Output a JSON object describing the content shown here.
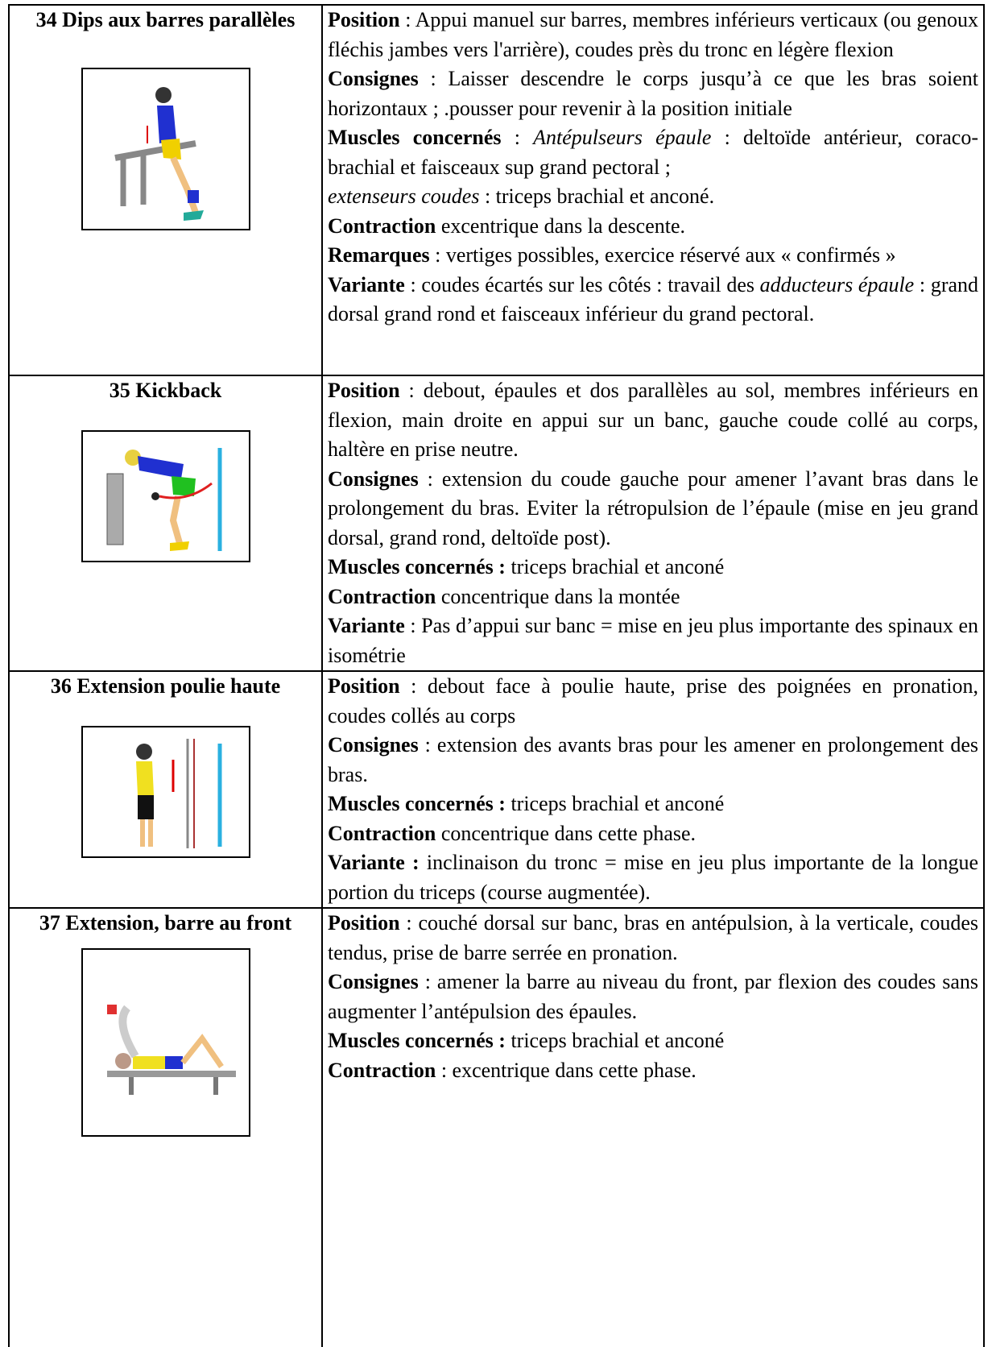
{
  "table": {
    "rows": [
      {
        "title": "34 Dips  aux barres parallèles",
        "paragraphs": [
          [
            {
              "text": "Position",
              "style": "bold"
            },
            {
              "text": " : Appui manuel sur barres, membres inférieurs verticaux (ou genoux fléchis jambes vers l'arrière), coudes près du tronc en légère flexion"
            }
          ],
          [
            {
              "text": "Consignes",
              "style": "bold"
            },
            {
              "text": " : Laisser descendre le corps jusqu’à ce que les bras soient horizontaux ; .pousser pour revenir à la position initiale"
            }
          ],
          [
            {
              "text": "Muscles concernés",
              "style": "bold"
            },
            {
              "text": " : "
            },
            {
              "text": "Antépulseurs épaule",
              "style": "italic"
            },
            {
              "text": " : deltoïde antérieur, coraco-brachial et faisceaux sup grand pectoral ;"
            }
          ],
          [
            {
              "text": "extenseurs coudes",
              "style": "italic"
            },
            {
              "text": " : triceps brachial et anconé."
            }
          ],
          [
            {
              "text": "Contraction",
              "style": "bold"
            },
            {
              "text": " excentrique dans la descente."
            }
          ],
          [
            {
              "text": "Remarques",
              "style": "bold"
            },
            {
              "text": " : vertiges possibles, exercice réservé aux « confirmés »"
            }
          ],
          [
            {
              "text": "Variante",
              "style": "bold"
            },
            {
              "text": " : coudes écartés sur les côtés : travail des "
            },
            {
              "text": "adducteurs épaule",
              "style": "italic"
            },
            {
              "text": " : grand dorsal grand rond et faisceaux inférieur du grand pectoral."
            }
          ]
        ]
      },
      {
        "title": "35 Kickback",
        "paragraphs": [
          [
            {
              "text": "Position",
              "style": "bold"
            },
            {
              "text": " : debout, épaules et dos parallèles au sol, membres inférieurs en flexion, main droite en appui sur un banc, gauche coude collé au corps, haltère en prise neutre."
            }
          ],
          [
            {
              "text": "Consignes",
              "style": "bold"
            },
            {
              "text": " : extension du coude gauche pour amener l’avant bras dans le prolongement du bras. Eviter la rétropulsion de l’épaule (mise en jeu grand dorsal, grand rond, deltoïde post)."
            }
          ],
          [
            {
              "text": "Muscles concernés :",
              "style": "bold"
            },
            {
              "text": " triceps brachial et anconé"
            }
          ],
          [
            {
              "text": "Contraction",
              "style": "bold"
            },
            {
              "text": " concentrique dans la montée"
            }
          ],
          [
            {
              "text": "Variante",
              "style": "bold"
            },
            {
              "text": " : Pas d’appui sur banc = mise en jeu plus importante des spinaux en isométrie"
            }
          ]
        ]
      },
      {
        "title": "36 Extension poulie haute",
        "paragraphs": [
          [
            {
              "text": "Position",
              "style": "bold"
            },
            {
              "text": " : debout face à poulie haute, prise des poignées en pronation, coudes collés au corps"
            }
          ],
          [
            {
              "text": "Consignes",
              "style": "bold"
            },
            {
              "text": " : extension des avants bras pour les amener en prolongement des bras."
            }
          ],
          [
            {
              "text": "Muscles concernés :",
              "style": "bold"
            },
            {
              "text": " triceps brachial et anconé"
            }
          ],
          [
            {
              "text": "Contraction",
              "style": "bold"
            },
            {
              "text": " concentrique dans cette phase."
            }
          ],
          [
            {
              "text": "Variante :",
              "style": "bold"
            },
            {
              "text": "  inclinaison du tronc = mise en jeu plus importante de la longue portion du triceps (course augmentée)."
            }
          ]
        ]
      },
      {
        "title": "37 Extension, barre au front",
        "paragraphs": [
          [
            {
              "text": "Position",
              "style": "bold"
            },
            {
              "text": " : couché dorsal sur banc, bras en antépulsion, à la verticale, coudes tendus, prise de barre serrée en pronation."
            }
          ],
          [
            {
              "text": "Consignes",
              "style": "bold"
            },
            {
              "text": " : amener la barre au niveau du front, par flexion des coudes sans augmenter l’antépulsion des épaules."
            }
          ],
          [
            {
              "text": "Muscles concernés :",
              "style": "bold"
            },
            {
              "text": " triceps brachial et anconé"
            }
          ],
          [
            {
              "text": "Contraction",
              "style": "bold"
            },
            {
              "text": " : excentrique dans cette phase."
            }
          ]
        ]
      }
    ]
  }
}
